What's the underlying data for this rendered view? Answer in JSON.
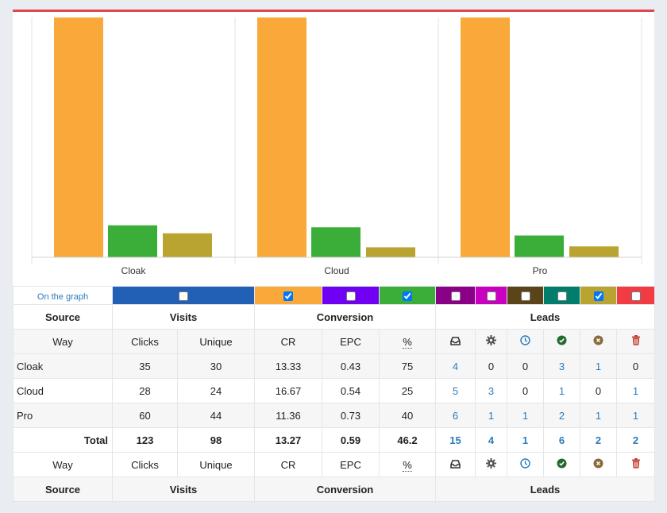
{
  "chart_data": {
    "type": "bar",
    "categories": [
      "Cloak",
      "Cloud",
      "Pro"
    ],
    "series": [
      {
        "color": "#f8a93a",
        "values": [
          30,
          24,
          44
        ]
      },
      {
        "color": "#3aae38",
        "values": [
          4,
          3,
          4
        ]
      },
      {
        "color": "#b9a431",
        "values": [
          3,
          1,
          2
        ]
      }
    ],
    "note": "each group normalized independently"
  },
  "selector": {
    "label": "On the graph",
    "swatches": [
      {
        "color": "#2160b4",
        "checked": false
      },
      {
        "color": "#f8a93a",
        "checked": true
      },
      {
        "color": "#6f00f4",
        "checked": false
      },
      {
        "color": "#3aae38",
        "checked": true
      },
      {
        "color": "#8a0086",
        "checked": false
      },
      {
        "color": "#c900c0",
        "checked": false
      },
      {
        "color": "#5b4419",
        "checked": false
      },
      {
        "color": "#007e6b",
        "checked": false
      },
      {
        "color": "#b9a431",
        "checked": true
      },
      {
        "color": "#f13c44",
        "checked": false
      },
      {
        "color": "#2cb8f0",
        "checked": false
      }
    ]
  },
  "table": {
    "groups": {
      "source": "Source",
      "visits": "Visits",
      "conversion": "Conversion",
      "leads": "Leads"
    },
    "columns": {
      "way": "Way",
      "clicks": "Clicks",
      "unique": "Unique",
      "cr": "CR",
      "epc": "EPC",
      "pct": "%"
    },
    "rows": [
      {
        "name": "Cloak",
        "clicks": "35",
        "unique": "30",
        "cr": "13.33",
        "epc": "0.43",
        "pct": "75",
        "l1": "4",
        "l2": "0",
        "l3": "0",
        "l4": "3",
        "l5": "1",
        "l6": "0"
      },
      {
        "name": "Cloud",
        "clicks": "28",
        "unique": "24",
        "cr": "16.67",
        "epc": "0.54",
        "pct": "25",
        "l1": "5",
        "l2": "3",
        "l3": "0",
        "l4": "1",
        "l5": "0",
        "l6": "1"
      },
      {
        "name": "Pro",
        "clicks": "60",
        "unique": "44",
        "cr": "11.36",
        "epc": "0.73",
        "pct": "40",
        "l1": "6",
        "l2": "1",
        "l3": "1",
        "l4": "2",
        "l5": "1",
        "l6": "1"
      }
    ],
    "total": {
      "label": "Total",
      "clicks": "123",
      "unique": "98",
      "cr": "13.27",
      "epc": "0.59",
      "pct": "46.2",
      "l1": "15",
      "l2": "4",
      "l3": "1",
      "l4": "6",
      "l5": "2",
      "l6": "2"
    },
    "lead_icons": [
      "inbox-icon",
      "gear-icon",
      "clock-icon",
      "check-circle-icon",
      "x-circle-icon",
      "trash-icon"
    ],
    "lead_colors": [
      "#333333",
      "#555555",
      "#2a7bbd",
      "#236b30",
      "#8a6a3a",
      "#c0392b"
    ]
  }
}
